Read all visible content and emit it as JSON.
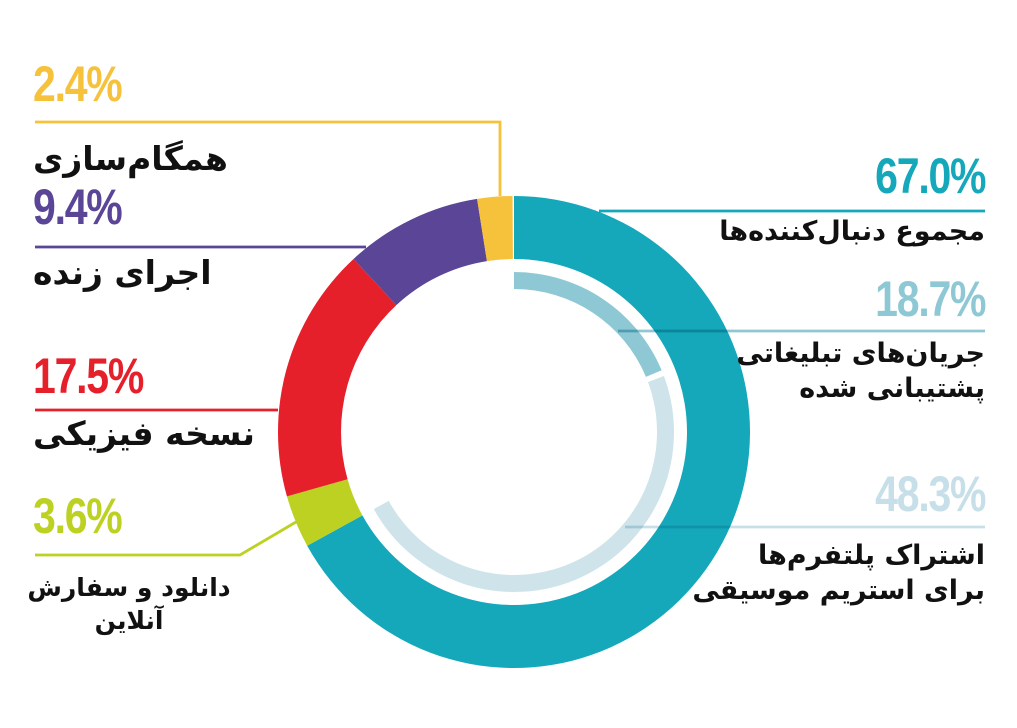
{
  "chart_data": {
    "type": "donut",
    "title": "",
    "unit": "%",
    "start_angle_deg": 0,
    "direction": "clockwise",
    "background": "#ffffff",
    "label_color": "#111111",
    "series": [
      {
        "id": "streaming",
        "name": "مجموع دنبال‌کننده‌ها",
        "value": 67.0,
        "color": "#14a8ba"
      },
      {
        "id": "download",
        "name": "دانلود و سفارش آنلاین",
        "value": 3.6,
        "color": "#bdd122"
      },
      {
        "id": "physical",
        "name": "نسخه فیزیکی",
        "value": 17.5,
        "color": "#e5202b"
      },
      {
        "id": "live",
        "name": "اجرای زنده",
        "value": 9.4,
        "color": "#5a4596"
      },
      {
        "id": "sync",
        "name": "همگام‌سازی",
        "value": 2.4,
        "color": "#f6c23c"
      }
    ],
    "sub_series": [
      {
        "id": "adsupported",
        "name": "جریان‌های تبلیغاتی پشتیبانی شده",
        "value": 18.7,
        "color": "#8ec8d4"
      },
      {
        "id": "subscription",
        "name": "اشتراک پلتفرم‌ها برای استریم موسیقی",
        "value": 48.3,
        "color": "#cfe4ea"
      }
    ]
  },
  "callouts": {
    "left": [
      {
        "id": "sync",
        "pct": "2.4%",
        "color": "#f6c23c",
        "label_lines": [
          "همگام‌سازی"
        ]
      },
      {
        "id": "live",
        "pct": "9.4%",
        "color": "#5a4596",
        "label_lines": [
          "اجرای زنده"
        ]
      },
      {
        "id": "physical",
        "pct": "17.5%",
        "color": "#e5202b",
        "label_lines": [
          "نسخه فیزیکی"
        ]
      },
      {
        "id": "download",
        "pct": "3.6%",
        "color": "#bdd122",
        "label_lines": [
          "دانلود و سفارش",
          "آنلاین"
        ]
      }
    ],
    "right": [
      {
        "id": "streaming",
        "pct": "67.0%",
        "color": "#14a8ba",
        "label_lines": [
          "مجموع دنبال‌کننده‌ها"
        ]
      },
      {
        "id": "adsupported",
        "pct": "18.7%",
        "color": "#8ec8d4",
        "label_lines": [
          "جریان‌های تبلیغاتی",
          "پشتیبانی شده"
        ]
      },
      {
        "id": "subscription",
        "pct": "48.3%",
        "color": "#c7dfe8",
        "label_lines": [
          "اشتراک پلتفرم‌ها",
          "برای استریم موسیقی"
        ]
      }
    ]
  }
}
